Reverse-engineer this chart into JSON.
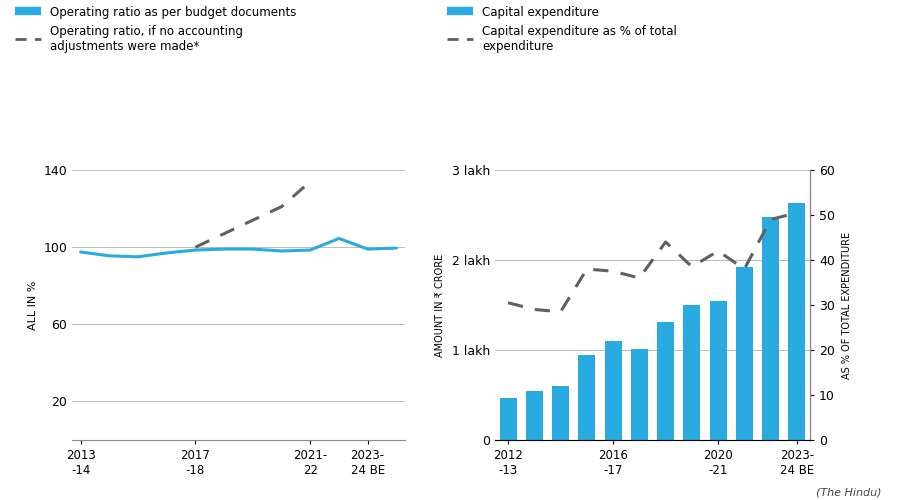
{
  "left_chart": {
    "x_labels": [
      "2013\n-14",
      "2017\n-18",
      "2021-\n22",
      "2023-\n24 BE"
    ],
    "x_tick_positions": [
      0,
      4,
      8,
      10
    ],
    "blue_line_x": [
      0,
      1,
      2,
      3,
      4,
      5,
      6,
      7,
      8,
      9,
      10,
      11
    ],
    "blue_line_y": [
      97.5,
      95.5,
      95.0,
      97.0,
      98.5,
      99.0,
      99.0,
      98.0,
      98.5,
      104.5,
      99.0,
      99.5
    ],
    "dashed_line_x": [
      4,
      5,
      6,
      7,
      8
    ],
    "dashed_line_y": [
      100.0,
      107.0,
      114.0,
      121.0,
      134.0
    ],
    "ylim": [
      0,
      140
    ],
    "yticks": [
      20,
      60,
      100,
      140
    ],
    "ylabel": "ALL IN %",
    "legend1_label": "Operating ratio as per budget documents",
    "legend2_label": "Operating ratio, if no accounting\nadjustments were made*",
    "line_color": "#29ABE2",
    "dashed_color": "#606060",
    "grid_color": "#BBBBBB",
    "bg_color": "#FFFFFF"
  },
  "right_chart": {
    "x_labels": [
      "2012\n-13",
      "2016\n-17",
      "2020\n-21",
      "2023-\n24 BE"
    ],
    "x_tick_positions": [
      0,
      4,
      8,
      11
    ],
    "bar_x": [
      0,
      1,
      2,
      3,
      4,
      5,
      6,
      7,
      8,
      9,
      10,
      11
    ],
    "bar_heights": [
      47000,
      55000,
      60000,
      94000,
      110000,
      101000,
      131000,
      150000,
      155000,
      192000,
      248000,
      263000
    ],
    "dashed_line_x": [
      0,
      1,
      2,
      3,
      4,
      5,
      6,
      7,
      8,
      9,
      10,
      11
    ],
    "dashed_line_y": [
      30.5,
      29.0,
      28.5,
      38.0,
      37.5,
      36.0,
      44.0,
      38.5,
      42.0,
      38.0,
      49.0,
      50.5
    ],
    "ylim_left": [
      0,
      300000
    ],
    "ylim_right": [
      0,
      60
    ],
    "yticks_left_labels": [
      "0",
      "1 lakh",
      "2 lakh",
      "3 lakh"
    ],
    "yticks_left_vals": [
      0,
      100000,
      200000,
      300000
    ],
    "yticks_right": [
      0,
      10,
      20,
      30,
      40,
      50,
      60
    ],
    "ylabel_left": "AMOUNT IN ₹ CRORE",
    "ylabel_right": "AS % OF TOTAL EXPENDITURE",
    "legend1_label": "Capital expenditure",
    "legend2_label": "Capital expenditure as % of total\nexpenditure",
    "bar_color": "#29ABE2",
    "dashed_color": "#606060",
    "grid_color": "#BBBBBB",
    "bg_color": "#FFFFFF"
  },
  "source": "(The Hindu)"
}
